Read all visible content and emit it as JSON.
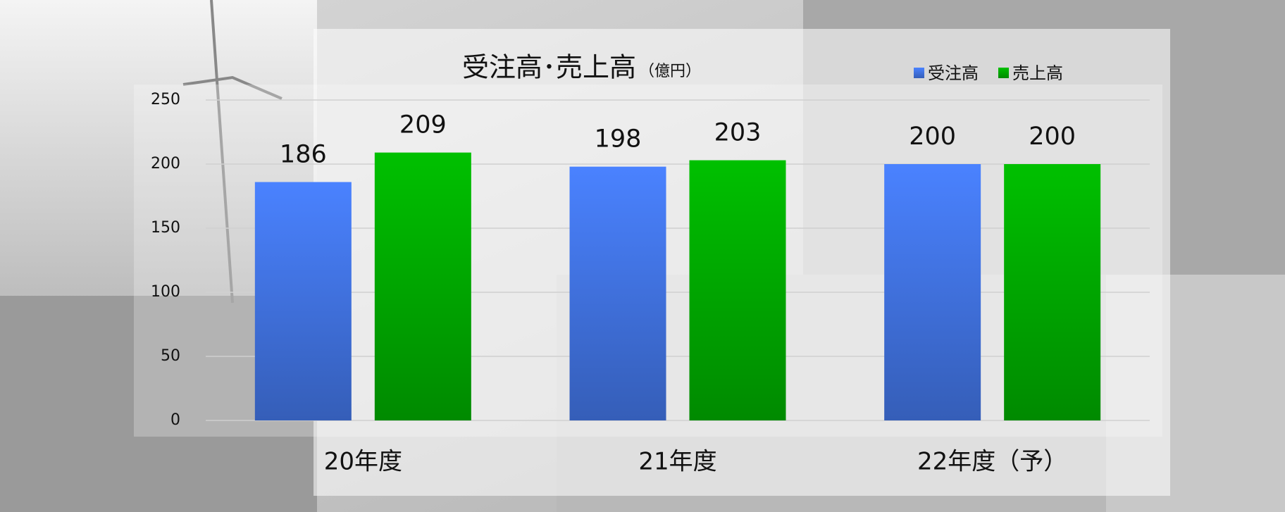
{
  "chart_data": {
    "type": "bar",
    "title": "受注高･売上高",
    "unit": "（億円）",
    "categories": [
      "20年度",
      "21年度",
      "22年度（予）"
    ],
    "series": [
      {
        "name": "受注高",
        "color": "#4a82ff",
        "values": [
          186,
          198,
          200
        ]
      },
      {
        "name": "売上高",
        "color": "#00c000",
        "values": [
          209,
          203,
          200
        ]
      }
    ],
    "ylim": [
      0,
      250
    ],
    "yticks": [
      0,
      50,
      100,
      150,
      200,
      250
    ],
    "grid": true,
    "legend": "top-right"
  }
}
